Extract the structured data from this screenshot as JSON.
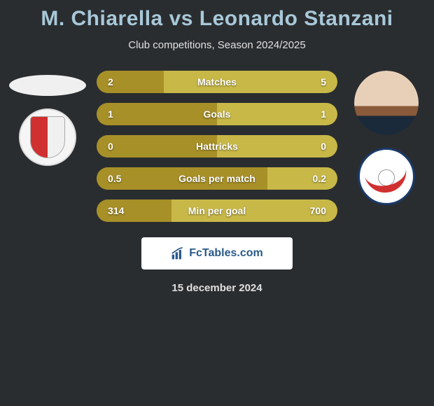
{
  "background_color": "#2a2d30",
  "title": {
    "text": "M. Chiarella vs Leonardo Stanzani",
    "color": "#a8c8d8",
    "fontsize": 30
  },
  "subtitle": {
    "text": "Club competitions, Season 2024/2025",
    "color": "#e0e0e0",
    "fontsize": 15
  },
  "bar_style": {
    "height": 32,
    "border_radius": 16,
    "track_color": "#4a4a4a",
    "left_color": "#a89028",
    "right_color": "#c8b848",
    "text_color": "#ffffff",
    "fontsize": 14
  },
  "stats": [
    {
      "label": "Matches",
      "left_val": "2",
      "right_val": "5",
      "left_pct": 28,
      "right_pct": 72
    },
    {
      "label": "Goals",
      "left_val": "1",
      "right_val": "1",
      "left_pct": 50,
      "right_pct": 50
    },
    {
      "label": "Hattricks",
      "left_val": "0",
      "right_val": "0",
      "left_pct": 50,
      "right_pct": 50
    },
    {
      "label": "Goals per match",
      "left_val": "0.5",
      "right_val": "0.2",
      "left_pct": 71,
      "right_pct": 29
    },
    {
      "label": "Min per goal",
      "left_val": "314",
      "right_val": "700",
      "left_pct": 31,
      "right_pct": 69
    }
  ],
  "players": {
    "left": {
      "name": "M. Chiarella",
      "photo_bg": "#f0f0f0"
    },
    "right": {
      "name": "Leonardo Stanzani",
      "photo_bg": "#f5d7c0"
    }
  },
  "clubs": {
    "left": {
      "badge_bg": "#f5f5f5",
      "accent": "#d03030"
    },
    "right": {
      "badge_bg": "#ffffff",
      "accent": "#d03030",
      "ring": "#1a3a6a"
    }
  },
  "logo": {
    "text": "FcTables.com",
    "bg": "#ffffff",
    "text_color": "#2a5a8a",
    "icon_color": "#2a5a8a"
  },
  "date": {
    "text": "15 december 2024",
    "color": "#e0e0e0",
    "fontsize": 15
  }
}
